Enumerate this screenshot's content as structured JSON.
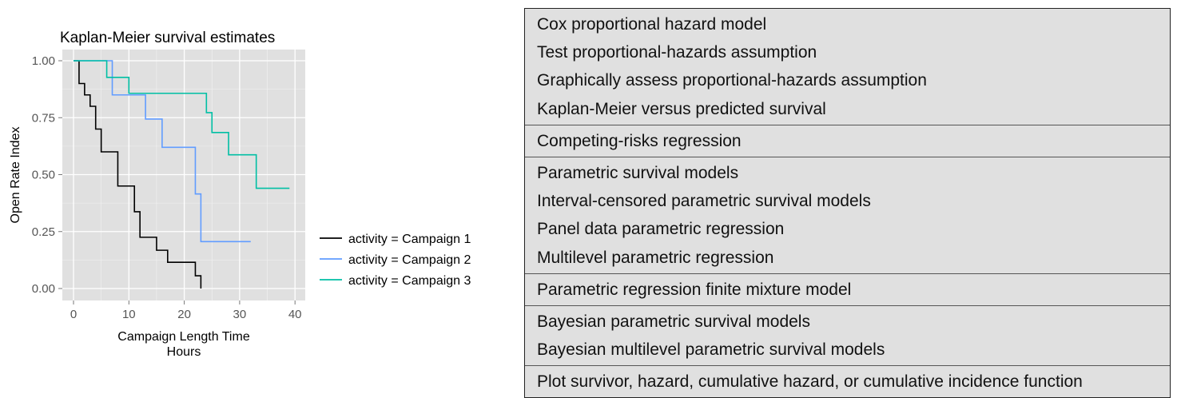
{
  "chart_data": {
    "type": "line",
    "step": true,
    "title": "Kaplan-Meier survival estimates",
    "xlabel": "Campaign Length Time\nHours",
    "xlabel_lines": [
      "Campaign Length Time",
      "Hours"
    ],
    "ylabel": "Open Rate Index",
    "xlim": [
      -2,
      41
    ],
    "ylim": [
      -0.04,
      1.04
    ],
    "xticks": [
      0,
      10,
      20,
      30,
      40
    ],
    "xtick_labels": [
      "0",
      "10",
      "20",
      "30",
      "40"
    ],
    "yticks": [
      0,
      0.25,
      0.5,
      0.75,
      1.0
    ],
    "ytick_labels": [
      "0.00",
      "0.25",
      "0.50",
      "0.75",
      "1.00"
    ],
    "grid": true,
    "legend_position": "right",
    "series": [
      {
        "name": "activity = Campaign 1",
        "color": "#000000",
        "x": [
          0,
          1,
          2,
          3,
          4,
          5,
          8,
          11,
          12,
          15,
          17,
          22,
          23
        ],
        "y": [
          1.0,
          0.9,
          0.85,
          0.8,
          0.7,
          0.6,
          0.45,
          0.337,
          0.225,
          0.168,
          0.115,
          0.056,
          0.0
        ]
      },
      {
        "name": "activity = Campaign 2",
        "color": "#619CFF",
        "x": [
          0,
          7,
          13,
          16,
          22,
          23,
          32
        ],
        "y": [
          1.0,
          0.85,
          0.744,
          0.62,
          0.415,
          0.206,
          0.206
        ]
      },
      {
        "name": "activity = Campaign 3",
        "color": "#00BFA4",
        "x": [
          0,
          6,
          10,
          24,
          25,
          28,
          33,
          39
        ],
        "y": [
          1.0,
          0.927,
          0.857,
          0.772,
          0.685,
          0.587,
          0.44,
          0.44
        ]
      }
    ]
  },
  "table": {
    "groups": [
      [
        "Cox proportional hazard model",
        "Test proportional-hazards assumption",
        "Graphically assess proportional-hazards assumption",
        "Kaplan-Meier versus predicted survival"
      ],
      [
        "Competing-risks regression"
      ],
      [
        "Parametric survival models",
        "Interval-censored parametric survival models",
        "Panel data parametric regression",
        "Multilevel parametric regression"
      ],
      [
        "Parametric regression finite mixture model"
      ],
      [
        "Bayesian parametric survival models",
        "Bayesian multilevel parametric survival models"
      ],
      [
        "Plot survivor, hazard, cumulative hazard, or cumulative incidence function"
      ]
    ]
  }
}
